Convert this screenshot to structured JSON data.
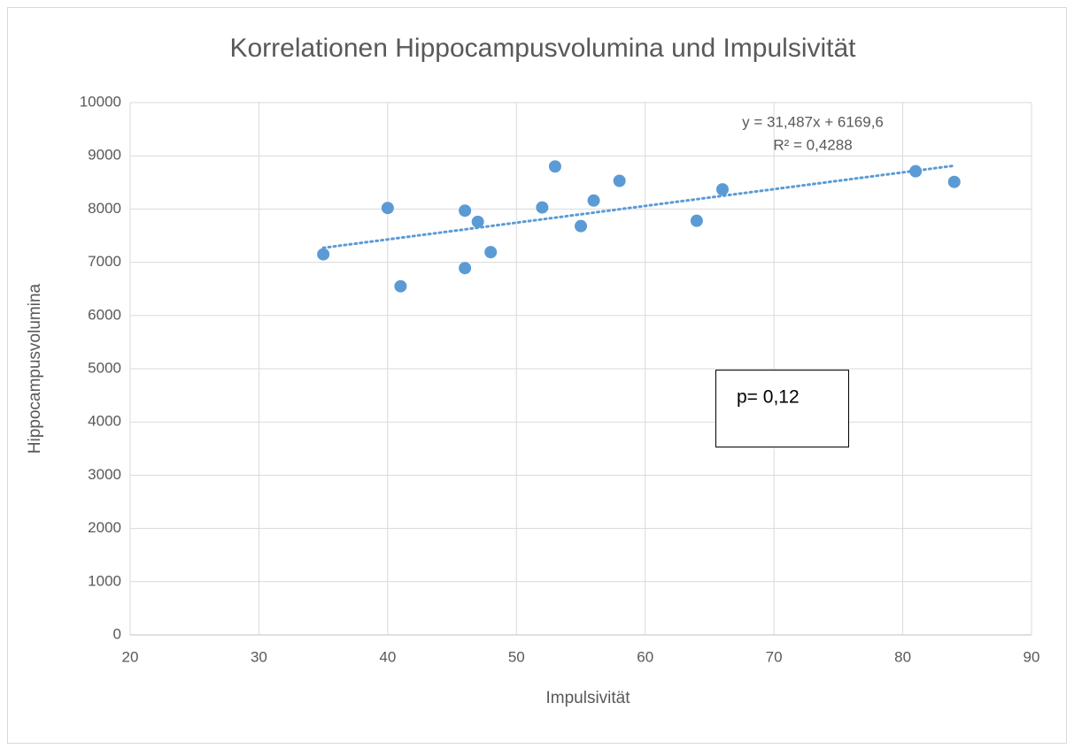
{
  "chart_data": {
    "type": "scatter",
    "title": "Korrelationen Hippocampusvolumina und Impulsivität",
    "x_label": "Impulsivität",
    "y_label": "Hippocampusvolumina",
    "series": [
      {
        "color": "#5b9bd5",
        "x": [
          35,
          40,
          41,
          46,
          46,
          47,
          48,
          52,
          53,
          55,
          56,
          58,
          64,
          66,
          81,
          84
        ],
        "values": [
          7150,
          8020,
          6550,
          7970,
          6890,
          7760,
          7190,
          8030,
          8800,
          7680,
          8160,
          8530,
          7780,
          8370,
          8710,
          8510
        ]
      }
    ],
    "trendline": {
      "slope": 31.487,
      "intercept": 6169.6,
      "equation": "y = 31,487x + 6169,6",
      "r_squared": "R² = 0,4288"
    },
    "annotation": "p= 0,12",
    "xlim": [
      20,
      90
    ],
    "xticks": [
      20,
      30,
      40,
      50,
      60,
      70,
      80,
      90
    ],
    "ylim": [
      0,
      10000
    ],
    "yticks": [
      0,
      1000,
      2000,
      3000,
      4000,
      5000,
      6000,
      7000,
      8000,
      9000,
      10000
    ],
    "grid": true
  }
}
